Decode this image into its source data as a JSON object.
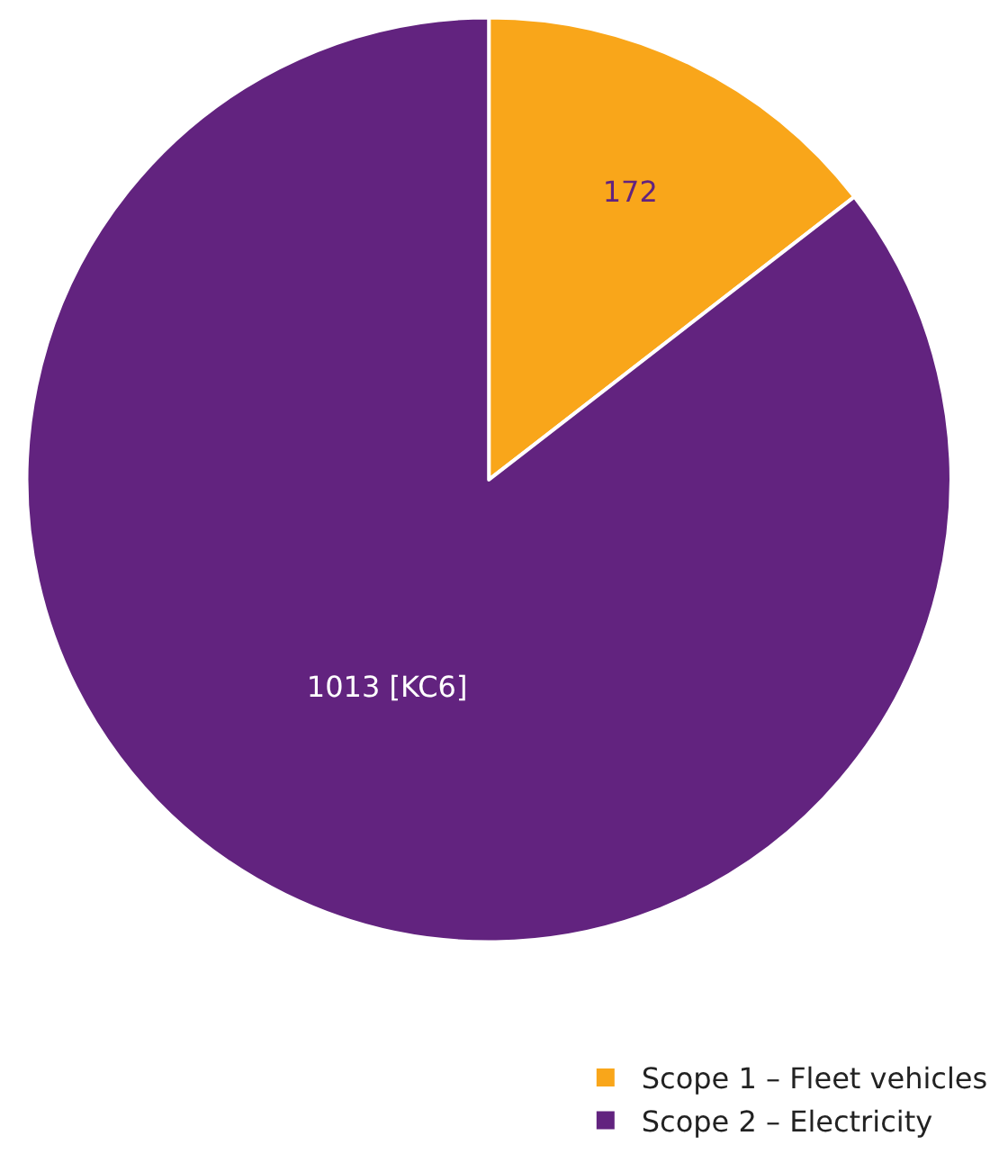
{
  "chart_data": {
    "type": "pie",
    "categories": [
      "Scope 1 – Fleet vehicles",
      "Scope 2 – Electricity"
    ],
    "values": [
      172,
      1013
    ],
    "colors": [
      "#f9a61a",
      "#62237f"
    ],
    "value_labels": [
      "172",
      "1013 [KC6]"
    ],
    "legend": "bottom right"
  }
}
